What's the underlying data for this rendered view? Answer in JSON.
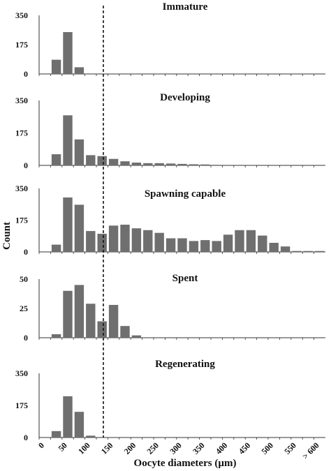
{
  "chart_data": {
    "type": "bar",
    "xlabel": "Oocyte diameters (µm)",
    "ylabel": "Count",
    "x_ticks": [
      "0",
      "50",
      "100",
      "150",
      "200",
      "250",
      "300",
      "350",
      "400",
      "450",
      "500",
      "550",
      "> 600"
    ],
    "reference_line": {
      "x": 125,
      "style": "dashed"
    },
    "bins": [
      0,
      25,
      50,
      75,
      100,
      125,
      150,
      175,
      200,
      225,
      250,
      275,
      300,
      325,
      350,
      375,
      400,
      425,
      450,
      475,
      500,
      525,
      550,
      575,
      600
    ],
    "panels": [
      {
        "title": "Immature",
        "yticks": [
          0,
          175,
          350
        ],
        "ylim": [
          0,
          350
        ],
        "values": [
          0,
          85,
          250,
          40,
          0,
          0,
          0,
          0,
          0,
          0,
          0,
          0,
          0,
          0,
          0,
          0,
          0,
          0,
          0,
          0,
          0,
          0,
          0,
          0,
          0
        ]
      },
      {
        "title": "Developing",
        "yticks": [
          0,
          175,
          350
        ],
        "ylim": [
          0,
          350
        ],
        "values": [
          0,
          60,
          270,
          140,
          55,
          50,
          35,
          22,
          15,
          12,
          12,
          10,
          8,
          6,
          5,
          3,
          0,
          0,
          0,
          0,
          0,
          0,
          0,
          0,
          0
        ]
      },
      {
        "title": "Spawning capable",
        "yticks": [
          0,
          175,
          350
        ],
        "ylim": [
          0,
          350
        ],
        "values": [
          0,
          40,
          300,
          260,
          115,
          100,
          145,
          150,
          130,
          120,
          105,
          75,
          75,
          60,
          65,
          60,
          95,
          120,
          120,
          90,
          50,
          30,
          5,
          5,
          5
        ]
      },
      {
        "title": "Spent",
        "yticks": [
          0,
          25,
          50
        ],
        "ylim": [
          0,
          50
        ],
        "values": [
          0,
          3,
          40,
          45,
          29,
          14,
          28,
          10,
          2,
          0,
          0,
          0,
          0,
          0,
          0,
          0,
          0,
          0,
          0,
          0,
          0,
          0,
          0,
          0,
          0
        ]
      },
      {
        "title": "Regenerating",
        "yticks": [
          0,
          175,
          350
        ],
        "ylim": [
          0,
          350
        ],
        "values": [
          0,
          35,
          225,
          140,
          10,
          0,
          0,
          0,
          0,
          0,
          0,
          0,
          0,
          0,
          0,
          0,
          0,
          0,
          0,
          0,
          0,
          0,
          0,
          0,
          0
        ]
      }
    ]
  }
}
